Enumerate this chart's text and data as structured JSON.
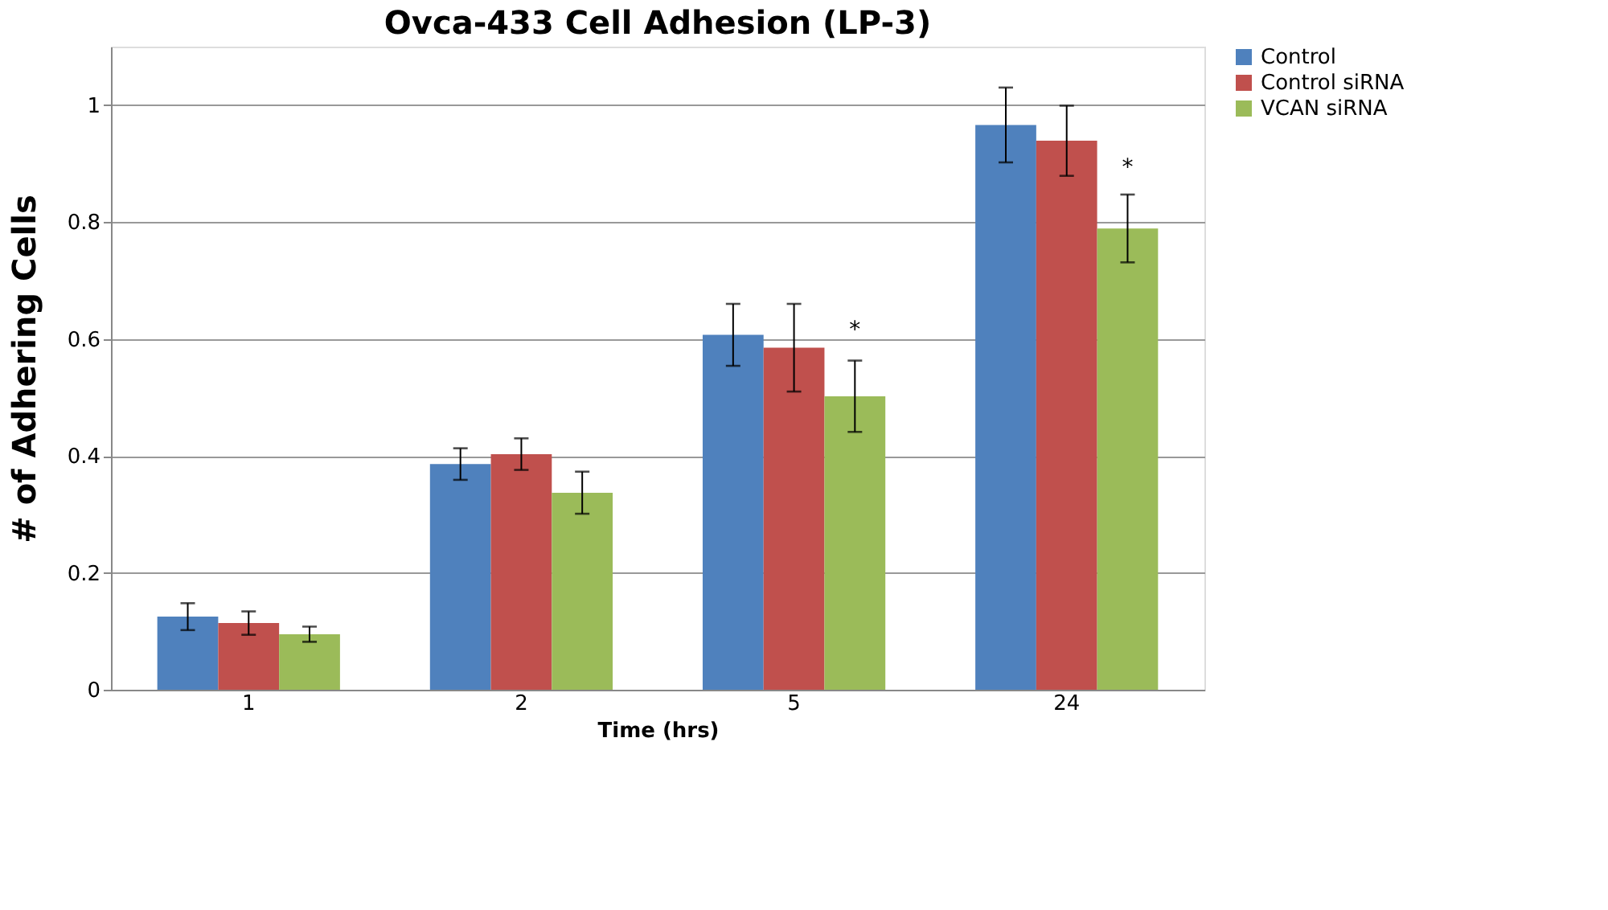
{
  "chart_data": {
    "type": "bar",
    "title": "Ovca-433 Cell Adhesion (LP-3)",
    "xlabel": "Time (hrs)",
    "ylabel": "# of Adhering Cells",
    "categories": [
      "1",
      "2",
      "5",
      "24"
    ],
    "series": [
      {
        "name": "Control",
        "color": "#4f81bd",
        "values": [
          0.125,
          0.386,
          0.607,
          0.966
        ],
        "errors": [
          0.023,
          0.027,
          0.053,
          0.064
        ]
      },
      {
        "name": "Control siRNA",
        "color": "#c0504d",
        "values": [
          0.114,
          0.403,
          0.585,
          0.939
        ],
        "errors": [
          0.02,
          0.027,
          0.075,
          0.06
        ]
      },
      {
        "name": "VCAN siRNA",
        "color": "#9bbb59",
        "values": [
          0.095,
          0.337,
          0.502,
          0.789
        ],
        "errors": [
          0.013,
          0.036,
          0.061,
          0.058
        ]
      }
    ],
    "ylim": [
      0,
      1.1
    ],
    "yticks": [
      0,
      0.2,
      0.4,
      0.6,
      0.8,
      1
    ],
    "grid": "y",
    "legend": "right",
    "annotations": [
      {
        "text": "*",
        "x": "5",
        "y": 0.615
      },
      {
        "text": "*",
        "x": "24",
        "y": 0.893
      }
    ]
  }
}
